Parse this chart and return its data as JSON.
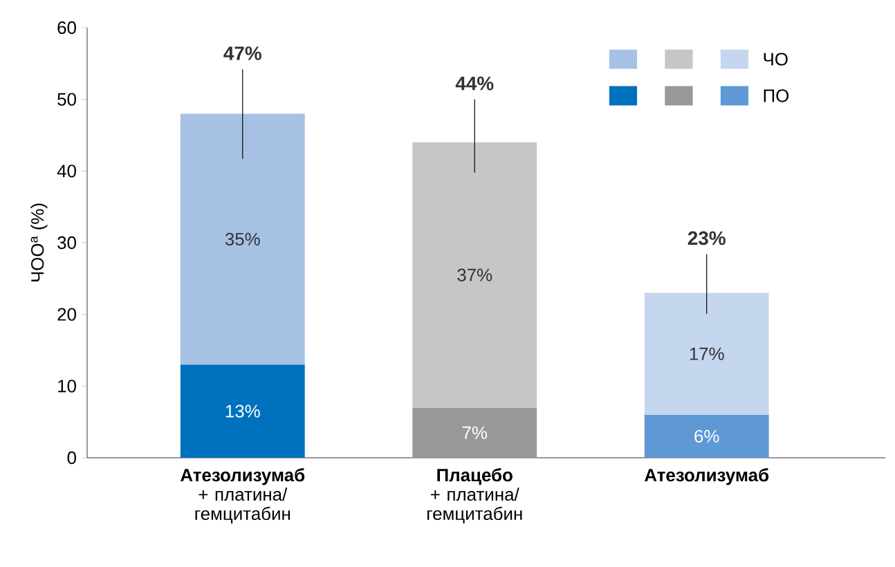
{
  "chart_data": {
    "type": "bar",
    "stacked": true,
    "ylabel": "ЧОО$^{а}$ (%)",
    "categories": [
      "**Атезолизумаб** + платина/ гемцитабин",
      "**Плацебо** + платина/ гемцитабин",
      "**Атезолизумаб**"
    ],
    "series": [
      {
        "name": "ПО",
        "colors": [
          "#0071bc",
          "#98989b",
          "#5e99d5"
        ],
        "values": [
          13,
          7,
          6
        ],
        "value_labels": [
          "13%",
          "7%",
          "6%"
        ]
      },
      {
        "name": "ЧО",
        "colors": [
          "#a7c1e4",
          "#c6c6c6",
          "#c5d6ef"
        ],
        "values": [
          35,
          37,
          17
        ],
        "value_labels": [
          "35%",
          "37%",
          "17%"
        ],
        "errors": [
          [
            41.7,
            54.2
          ],
          [
            39.8,
            50.0
          ],
          [
            20.1,
            28.4
          ]
        ]
      }
    ],
    "totals": [
      "47%",
      "44%",
      "23%"
    ],
    "ylim": [
      0,
      60
    ],
    "yticks": [
      0,
      10,
      20,
      30,
      40,
      50,
      60
    ],
    "legend": "top right"
  }
}
